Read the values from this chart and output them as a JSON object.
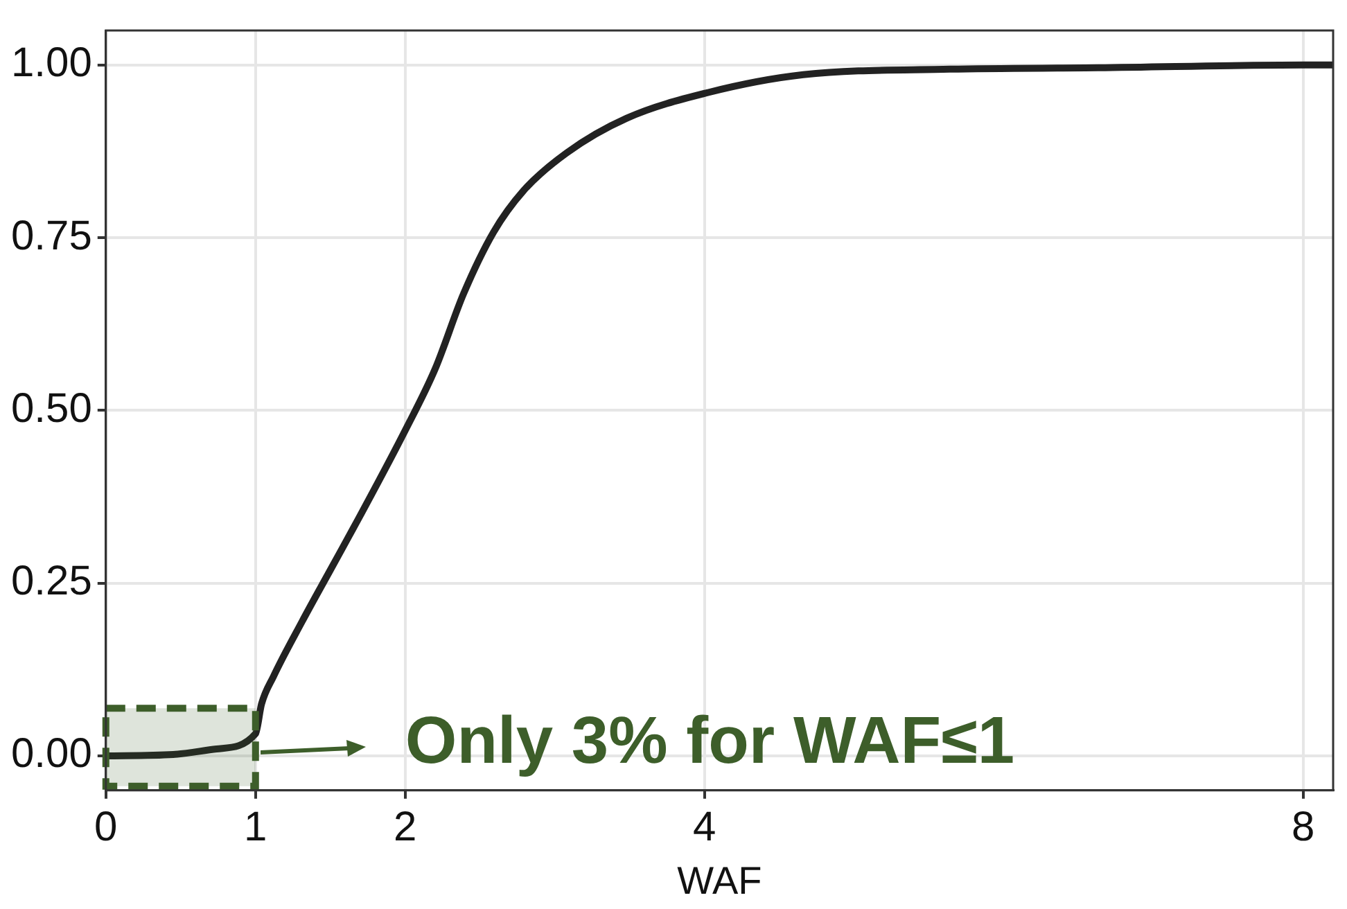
{
  "chart_data": {
    "type": "line",
    "xlabel": "WAF",
    "series": [
      {
        "color": "#222222",
        "x": [
          0,
          0.45,
          0.74,
          1.0,
          1.04,
          1.12,
          1.31,
          1.51,
          1.71,
          2.0,
          2.2,
          2.39,
          2.59,
          2.79,
          3.08,
          3.48,
          4.02,
          4.66,
          5.64,
          6.63,
          8.0,
          8.2
        ],
        "values": [
          0,
          0.002,
          0.01,
          0.032,
          0.075,
          0.115,
          0.194,
          0.273,
          0.352,
          0.471,
          0.56,
          0.669,
          0.758,
          0.818,
          0.873,
          0.923,
          0.96,
          0.986,
          0.994,
          0.996,
          1.0,
          1.0
        ]
      }
    ],
    "xlim": [
      0,
      8.2
    ],
    "xticks": [
      0,
      1,
      2,
      4,
      8
    ],
    "ylim": [
      -0.05,
      1.05
    ],
    "yticks": [
      {
        "value": 0,
        "label": "0.00"
      },
      {
        "value": 0.25,
        "label": "0.25"
      },
      {
        "value": 0.5,
        "label": "0.50"
      },
      {
        "value": 0.75,
        "label": "0.75"
      },
      {
        "value": 1,
        "label": "1.00"
      }
    ],
    "bands": [
      {
        "axis": "x",
        "from": 0,
        "to": 1,
        "color": "#3d5e2a",
        "label": "Only 3% for WAF≤1"
      }
    ],
    "grid": true,
    "legend": false,
    "marker": "none",
    "line_style": "solid"
  }
}
